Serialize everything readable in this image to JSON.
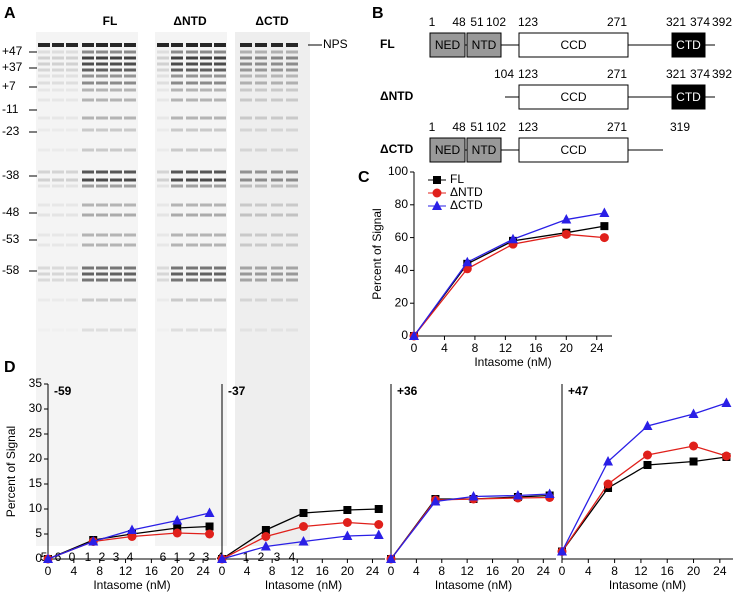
{
  "panel_labels": [
    "A",
    "B",
    "C",
    "D"
  ],
  "gel": {
    "groups": [
      "FL",
      "ΔNTD",
      "ΔCTD"
    ],
    "band_label": "NPS",
    "markers": [
      "+47",
      "+37",
      "+7",
      "-11",
      "-23",
      "-38",
      "-48",
      "-53",
      "-58"
    ],
    "lanes": [
      [
        "5",
        "6",
        "0",
        "1",
        "2",
        "3",
        "4"
      ],
      [
        "6",
        "1",
        "2",
        "3",
        "4"
      ],
      [
        "1",
        "2",
        "3",
        "4"
      ]
    ]
  },
  "domains": {
    "rows": [
      {
        "name": "FL",
        "numbers": [
          "1",
          "48",
          "51",
          "102",
          "123",
          "271",
          "321",
          "374",
          "392"
        ],
        "boxes": [
          "NED",
          "NTD",
          "CCD",
          "CTD"
        ]
      },
      {
        "name": "ΔNTD",
        "numbers": [
          "104",
          "123",
          "271",
          "321",
          "374",
          "392"
        ],
        "boxes": [
          "CCD",
          "CTD"
        ]
      },
      {
        "name": "ΔCTD",
        "numbers": [
          "1",
          "48",
          "51",
          "102",
          "123",
          "271",
          "319"
        ],
        "boxes": [
          "NED",
          "NTD",
          "CCD"
        ]
      }
    ]
  },
  "chart_data": [
    {
      "type": "line",
      "xlabel": "Intasome (nM)",
      "ylabel": "Percent of Signal",
      "legend": "upper left",
      "x": [
        0,
        7,
        13,
        20,
        25
      ],
      "xlim": [
        0,
        26
      ],
      "xticks": [
        0,
        4,
        8,
        12,
        16,
        20,
        24
      ],
      "ylim": [
        0,
        100
      ],
      "yticks": [
        0,
        20,
        40,
        60,
        80,
        100
      ],
      "series": [
        {
          "name": "FL",
          "color": "#000000",
          "marker": "square",
          "values": [
            0,
            44,
            58,
            63,
            67
          ]
        },
        {
          "name": "ΔNTD",
          "color": "#e0201b",
          "marker": "circle",
          "values": [
            0,
            41,
            56,
            62,
            60
          ]
        },
        {
          "name": "ΔCTD",
          "color": "#2a1fe6",
          "marker": "triangle",
          "values": [
            0,
            45,
            59,
            71,
            75
          ]
        }
      ]
    },
    {
      "type": "line",
      "title": "-59",
      "xlabel": "Intasome (nM)",
      "ylabel": "Percent of Signal",
      "x": [
        0,
        7,
        13,
        20,
        25
      ],
      "xlim": [
        0,
        26
      ],
      "xticks": [
        0,
        4,
        8,
        12,
        16,
        20,
        24
      ],
      "ylim": [
        0,
        35
      ],
      "yticks": [
        0,
        5,
        10,
        15,
        20,
        25,
        30,
        35
      ],
      "series": [
        {
          "color": "#000000",
          "marker": "square",
          "values": [
            0,
            3.8,
            5,
            6.2,
            6.5
          ]
        },
        {
          "color": "#e0201b",
          "marker": "circle",
          "values": [
            0,
            3.5,
            4.5,
            5.2,
            5
          ]
        },
        {
          "color": "#2a1fe6",
          "marker": "triangle",
          "values": [
            0,
            3.5,
            5.8,
            7.7,
            9.2
          ]
        }
      ]
    },
    {
      "type": "line",
      "title": "-37",
      "xlabel": "Intasome (nM)",
      "x": [
        0,
        7,
        13,
        20,
        25
      ],
      "xlim": [
        0,
        26
      ],
      "xticks": [
        0,
        4,
        8,
        12,
        16,
        20,
        24
      ],
      "ylim": [
        0,
        35
      ],
      "series": [
        {
          "color": "#000000",
          "marker": "square",
          "values": [
            0,
            5.8,
            9.2,
            9.8,
            10
          ]
        },
        {
          "color": "#e0201b",
          "marker": "circle",
          "values": [
            0,
            4.5,
            6.5,
            7.3,
            6.9
          ]
        },
        {
          "color": "#2a1fe6",
          "marker": "triangle",
          "values": [
            0,
            2.5,
            3.5,
            4.6,
            4.8
          ]
        }
      ]
    },
    {
      "type": "line",
      "title": "+36",
      "xlabel": "Intasome (nM)",
      "x": [
        0,
        7,
        13,
        20,
        25
      ],
      "xlim": [
        0,
        26
      ],
      "xticks": [
        0,
        4,
        8,
        12,
        16,
        20,
        24
      ],
      "ylim": [
        0,
        35
      ],
      "series": [
        {
          "color": "#000000",
          "marker": "square",
          "values": [
            0,
            12,
            12,
            12.4,
            12.7
          ]
        },
        {
          "color": "#e0201b",
          "marker": "circle",
          "values": [
            0,
            11.8,
            12,
            12.2,
            12.3
          ]
        },
        {
          "color": "#2a1fe6",
          "marker": "triangle",
          "values": [
            0,
            11.5,
            12.5,
            12.7,
            13
          ]
        }
      ]
    },
    {
      "type": "line",
      "title": "+47",
      "xlabel": "Intasome (nM)",
      "x": [
        0,
        7,
        13,
        20,
        25
      ],
      "xlim": [
        0,
        26
      ],
      "xticks": [
        0,
        4,
        8,
        12,
        16,
        20,
        24
      ],
      "ylim": [
        0,
        35
      ],
      "series": [
        {
          "color": "#000000",
          "marker": "square",
          "values": [
            1.5,
            14.2,
            18.8,
            19.5,
            20.4
          ]
        },
        {
          "color": "#e0201b",
          "marker": "circle",
          "values": [
            1.5,
            15,
            20.8,
            22.6,
            20.6
          ]
        },
        {
          "color": "#2a1fe6",
          "marker": "triangle",
          "values": [
            1.5,
            19.5,
            26.6,
            29,
            31.2
          ]
        }
      ]
    }
  ]
}
